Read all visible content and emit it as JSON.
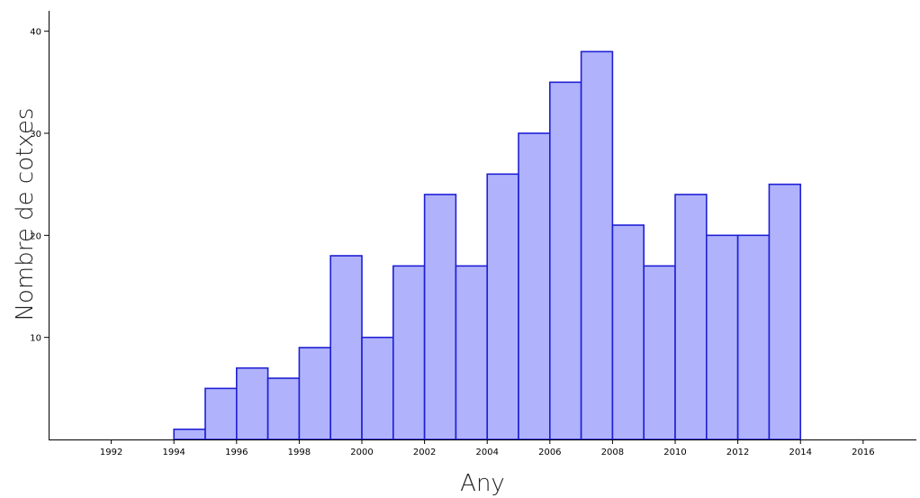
{
  "chart_data": {
    "type": "bar",
    "style": "histogram",
    "xlabel": "Any",
    "ylabel": "Nombre de cotxes",
    "x_ticks": [
      "1992",
      "1994",
      "1996",
      "1998",
      "2000",
      "2002",
      "2004",
      "2006",
      "2008",
      "2010",
      "2012",
      "2014",
      "2016"
    ],
    "y_ticks": [
      "10",
      "20",
      "30",
      "40"
    ],
    "xlim": [
      1990.0,
      2017.7
    ],
    "ylim": [
      0,
      42
    ],
    "bin_width": 1,
    "bins": [
      {
        "start": 1994,
        "value": 1
      },
      {
        "start": 1995,
        "value": 5
      },
      {
        "start": 1996,
        "value": 7
      },
      {
        "start": 1997,
        "value": 6
      },
      {
        "start": 1998,
        "value": 9
      },
      {
        "start": 1999,
        "value": 18
      },
      {
        "start": 2000,
        "value": 10
      },
      {
        "start": 2001,
        "value": 17
      },
      {
        "start": 2002,
        "value": 24
      },
      {
        "start": 2003,
        "value": 17
      },
      {
        "start": 2004,
        "value": 26
      },
      {
        "start": 2005,
        "value": 30
      },
      {
        "start": 2006,
        "value": 35
      },
      {
        "start": 2007,
        "value": 38
      },
      {
        "start": 2008,
        "value": 21
      },
      {
        "start": 2009,
        "value": 17
      },
      {
        "start": 2010,
        "value": 24
      },
      {
        "start": 2011,
        "value": 20
      },
      {
        "start": 2012,
        "value": 20
      },
      {
        "start": 2013,
        "value": 25
      }
    ],
    "bar_fill": "#b0b3fb",
    "bar_stroke": "#1f1fd6",
    "grid": false,
    "legend": "none"
  }
}
